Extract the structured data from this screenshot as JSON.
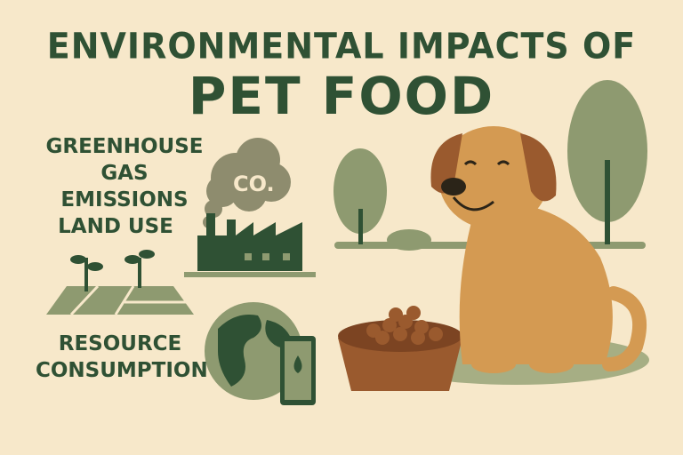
{
  "title": {
    "line1": "ENVIRONMENTAL IMPACTS OF",
    "line2": "PET FOOD"
  },
  "impacts": [
    {
      "label_line1": "GREENHOUSE",
      "label_line2": "GAS EMISSIONS",
      "icon": "factory-co2-icon",
      "cloud_text": "CO."
    },
    {
      "label_line1": "LAND USE",
      "icon": "farmland-sprouts-icon"
    },
    {
      "label_line1": "RESOURCE",
      "label_line2": "CONSUMPTION",
      "icon": "globe-oil-can-icon"
    }
  ],
  "colors": {
    "background": "#f7e8ca",
    "dark_green": "#2f5134",
    "olive": "#8e9a70",
    "dog": "#d49a52",
    "bowl": "#9a5a2e"
  }
}
